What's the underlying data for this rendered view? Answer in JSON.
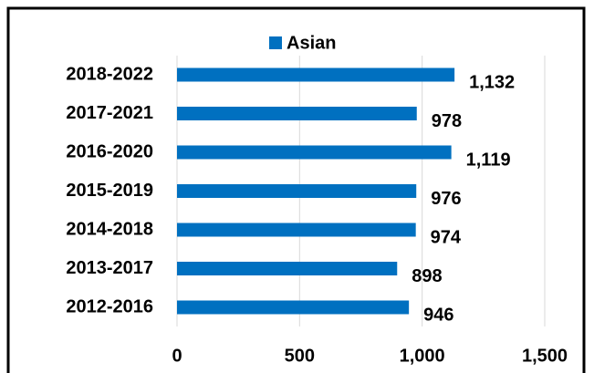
{
  "chart_data": {
    "type": "bar",
    "orientation": "horizontal",
    "categories": [
      "2018-2022",
      "2017-2021",
      "2016-2020",
      "2015-2019",
      "2014-2018",
      "2013-2017",
      "2012-2016"
    ],
    "series": [
      {
        "name": "Asian",
        "color": "#0070c0",
        "values": [
          1132,
          978,
          1119,
          976,
          974,
          898,
          946
        ],
        "value_labels": [
          "1,132",
          "978",
          "1,119",
          "976",
          "974",
          "898",
          "946"
        ]
      }
    ],
    "xlim": [
      0,
      1500
    ],
    "xticks": [
      0,
      500,
      {
        "value": 1000,
        "label": "1,000"
      },
      {
        "value": 1500,
        "label": "1,500"
      }
    ],
    "grid": true,
    "legend": "top"
  }
}
